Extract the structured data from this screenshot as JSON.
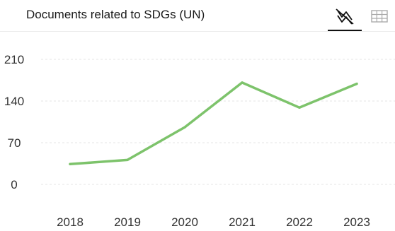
{
  "header": {
    "title": "Documents related to SDGs (UN)",
    "view_options": [
      {
        "name": "chart-view",
        "icon": "line-chart-icon",
        "active": true
      },
      {
        "name": "table-view",
        "icon": "table-grid-icon",
        "active": false
      }
    ]
  },
  "colors": {
    "line": "#7dc36b",
    "grid": "#e6e6e6",
    "active_underline": "#111111"
  },
  "chart_data": {
    "type": "line",
    "x": [
      "2018",
      "2019",
      "2020",
      "2021",
      "2022",
      "2023"
    ],
    "series": [
      {
        "values": [
          34,
          41,
          96,
          171,
          129,
          169
        ]
      }
    ],
    "yticks": [
      0,
      70,
      140,
      210
    ],
    "ylim": [
      0,
      210
    ],
    "grid": true,
    "legend": "none"
  }
}
